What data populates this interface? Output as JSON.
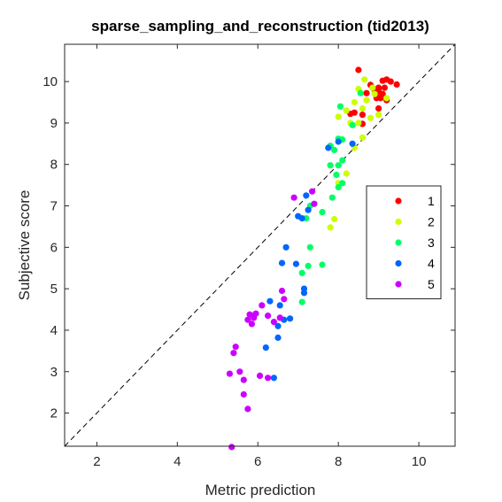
{
  "chart_data": {
    "type": "scatter",
    "title": "sparse_sampling_and_reconstruction (tid2013)",
    "xlabel": "Metric prediction",
    "ylabel": "Subjective score",
    "xlim": [
      1.2,
      10.9
    ],
    "ylim": [
      1.2,
      10.9
    ],
    "xticks": [
      2,
      4,
      6,
      8,
      10
    ],
    "yticks": [
      2,
      3,
      4,
      5,
      6,
      7,
      8,
      9,
      10
    ],
    "grid": false,
    "legend_position": "right",
    "diagonal_reference_line": true,
    "series": [
      {
        "name": "1",
        "color": "#ff0000",
        "points": [
          [
            8.5,
            10.28
          ],
          [
            8.7,
            9.72
          ],
          [
            8.85,
            9.85
          ],
          [
            8.95,
            9.7
          ],
          [
            9.0,
            9.85
          ],
          [
            9.1,
            10.02
          ],
          [
            9.2,
            10.05
          ],
          [
            9.3,
            10.0
          ],
          [
            9.45,
            9.93
          ],
          [
            9.2,
            9.55
          ],
          [
            9.05,
            9.6
          ],
          [
            8.9,
            9.8
          ],
          [
            9.1,
            9.7
          ],
          [
            8.8,
            9.92
          ],
          [
            9.0,
            9.35
          ],
          [
            8.6,
            8.98
          ],
          [
            8.4,
            9.25
          ],
          [
            8.6,
            9.2
          ],
          [
            8.3,
            9.22
          ],
          [
            9.0,
            9.78
          ],
          [
            8.95,
            9.6
          ],
          [
            9.15,
            9.85
          ]
        ]
      },
      {
        "name": "2",
        "color": "#ccff00",
        "points": [
          [
            8.65,
            10.05
          ],
          [
            8.5,
            9.82
          ],
          [
            8.85,
            9.85
          ],
          [
            8.9,
            9.7
          ],
          [
            8.7,
            9.55
          ],
          [
            8.6,
            9.35
          ],
          [
            9.2,
            9.6
          ],
          [
            8.4,
            9.5
          ],
          [
            8.2,
            9.3
          ],
          [
            8.0,
            9.15
          ],
          [
            8.3,
            9.0
          ],
          [
            8.5,
            9.0
          ],
          [
            8.8,
            9.12
          ],
          [
            8.6,
            8.65
          ],
          [
            8.4,
            8.4
          ],
          [
            8.2,
            7.78
          ],
          [
            8.0,
            7.55
          ],
          [
            7.9,
            6.68
          ],
          [
            7.8,
            6.48
          ],
          [
            9.0,
            9.2
          ]
        ]
      },
      {
        "name": "3",
        "color": "#00ff66",
        "points": [
          [
            8.05,
            9.4
          ],
          [
            8.55,
            9.72
          ],
          [
            8.35,
            8.95
          ],
          [
            8.1,
            8.6
          ],
          [
            8.0,
            8.62
          ],
          [
            7.8,
            8.45
          ],
          [
            8.1,
            8.1
          ],
          [
            8.0,
            7.98
          ],
          [
            7.8,
            7.98
          ],
          [
            7.95,
            7.75
          ],
          [
            8.0,
            7.45
          ],
          [
            7.85,
            7.2
          ],
          [
            7.6,
            6.85
          ],
          [
            7.3,
            7.0
          ],
          [
            7.2,
            6.7
          ],
          [
            7.3,
            6.0
          ],
          [
            7.6,
            5.58
          ],
          [
            7.25,
            5.55
          ],
          [
            7.1,
            4.68
          ],
          [
            7.1,
            5.38
          ],
          [
            7.9,
            8.35
          ],
          [
            8.1,
            7.55
          ]
        ]
      },
      {
        "name": "4",
        "color": "#0066ff",
        "points": [
          [
            8.0,
            8.55
          ],
          [
            8.35,
            8.5
          ],
          [
            7.75,
            8.4
          ],
          [
            7.2,
            7.25
          ],
          [
            7.25,
            6.9
          ],
          [
            7.1,
            6.7
          ],
          [
            6.7,
            6.0
          ],
          [
            6.6,
            5.62
          ],
          [
            6.95,
            5.6
          ],
          [
            7.15,
            5.0
          ],
          [
            7.15,
            4.9
          ],
          [
            6.3,
            4.7
          ],
          [
            6.55,
            4.6
          ],
          [
            6.8,
            4.28
          ],
          [
            6.65,
            4.25
          ],
          [
            6.5,
            4.1
          ],
          [
            6.2,
            3.58
          ],
          [
            6.5,
            3.82
          ],
          [
            6.4,
            2.85
          ],
          [
            7.0,
            6.75
          ]
        ]
      },
      {
        "name": "5",
        "color": "#cc00ff",
        "points": [
          [
            6.9,
            7.2
          ],
          [
            7.4,
            7.05
          ],
          [
            7.35,
            7.35
          ],
          [
            6.6,
            4.95
          ],
          [
            6.1,
            4.6
          ],
          [
            5.95,
            4.4
          ],
          [
            5.8,
            4.38
          ],
          [
            6.25,
            4.35
          ],
          [
            6.4,
            4.2
          ],
          [
            6.55,
            4.3
          ],
          [
            5.75,
            4.25
          ],
          [
            5.85,
            4.15
          ],
          [
            5.45,
            3.6
          ],
          [
            5.4,
            3.45
          ],
          [
            5.55,
            3.0
          ],
          [
            5.3,
            2.95
          ],
          [
            5.65,
            2.8
          ],
          [
            6.05,
            2.9
          ],
          [
            6.25,
            2.85
          ],
          [
            5.75,
            2.1
          ],
          [
            5.65,
            2.45
          ],
          [
            5.35,
            1.18
          ],
          [
            6.65,
            4.75
          ],
          [
            5.9,
            4.3
          ]
        ]
      }
    ]
  }
}
